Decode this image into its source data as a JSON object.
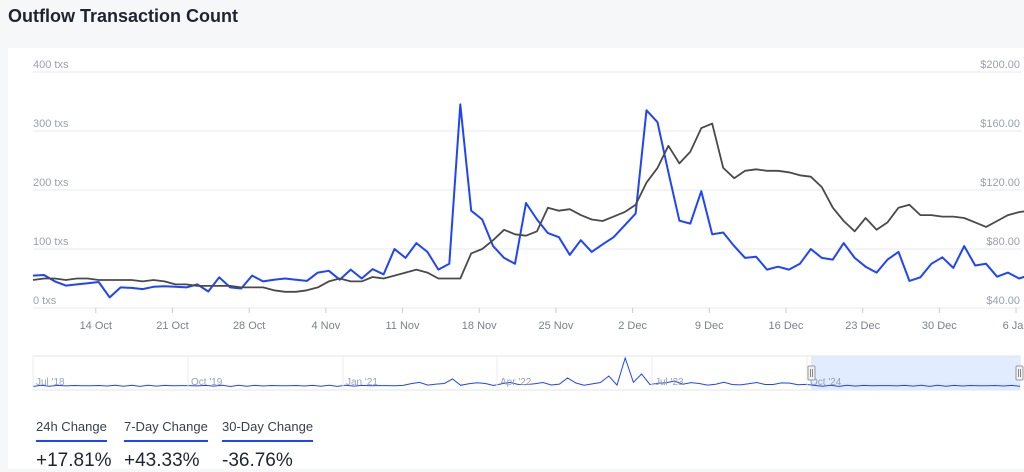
{
  "title": "Outflow Transaction Count",
  "colors": {
    "tx_line": "#1f44ff",
    "price_line": "#4a4a4a",
    "grid": "#e8e9ed",
    "axis_text": "#9aa0aa",
    "nav_fill": "#dbe7ff"
  },
  "chart_data": {
    "type": "line",
    "x_ticks": [
      "14 Oct",
      "21 Oct",
      "28 Oct",
      "4 Nov",
      "11 Nov",
      "18 Nov",
      "25 Nov",
      "2 Dec",
      "9 Dec",
      "16 Dec",
      "23 Dec",
      "30 Dec",
      "6 Jan"
    ],
    "y_left": {
      "ticks": [
        "0 txs",
        "100 txs",
        "200 txs",
        "300 txs",
        "400 txs"
      ],
      "range": [
        0,
        400
      ]
    },
    "y_right": {
      "ticks": [
        "$40.00",
        "$80.00",
        "$120.00",
        "$160.00",
        "$200.00"
      ],
      "range": [
        40,
        200
      ]
    },
    "grid": true,
    "x_start": "2024-10-09",
    "series": [
      {
        "axis": "left",
        "values": [
          55,
          56,
          45,
          38,
          40,
          42,
          44,
          18,
          35,
          34,
          32,
          36,
          37,
          36,
          35,
          40,
          28,
          52,
          35,
          33,
          55,
          45,
          48,
          50,
          48,
          46,
          60,
          63,
          48,
          65,
          50,
          66,
          57,
          100,
          85,
          110,
          95,
          65,
          75,
          345,
          165,
          150,
          105,
          85,
          75,
          178,
          150,
          127,
          120,
          90,
          115,
          95,
          108,
          120,
          140,
          160,
          335,
          315,
          230,
          148,
          143,
          198,
          125,
          128,
          105,
          85,
          87,
          65,
          70,
          65,
          75,
          100,
          85,
          82,
          110,
          85,
          70,
          60,
          82,
          95,
          46,
          52,
          75,
          86,
          68,
          105,
          72,
          75,
          53,
          60,
          50,
          56,
          46,
          66,
          65,
          80
        ]
      },
      {
        "axis": "right",
        "values": [
          59,
          60,
          60,
          59,
          60,
          60,
          59,
          59,
          59,
          59,
          58,
          59,
          58,
          56,
          56,
          55,
          55,
          55,
          55,
          54,
          54,
          54,
          52,
          51,
          51,
          52,
          54,
          58,
          60,
          58,
          58,
          61,
          60,
          62,
          64,
          66,
          64,
          60,
          60,
          60,
          77,
          80,
          86,
          93,
          90,
          89,
          92,
          108,
          106,
          107,
          103,
          100,
          99,
          102,
          105,
          110,
          125,
          135,
          150,
          138,
          146,
          162,
          165,
          135,
          128,
          133,
          134,
          133,
          133,
          132,
          130,
          129,
          122,
          108,
          99,
          92,
          101,
          93,
          98,
          108,
          110,
          103,
          103,
          102,
          102,
          101,
          98,
          95,
          99,
          103,
          105,
          106,
          105,
          104,
          101,
          91
        ]
      }
    ],
    "navigator_labels": [
      "Jul '18",
      "Oct '19",
      "Jan '21",
      "Apr '22",
      "Jul '23",
      "Oct '24"
    ]
  },
  "stats": [
    {
      "label": "24h Change",
      "value": "+17.81%"
    },
    {
      "label": "7-Day Change",
      "value": "+43.33%"
    },
    {
      "label": "30-Day Change",
      "value": "-36.76%"
    }
  ]
}
